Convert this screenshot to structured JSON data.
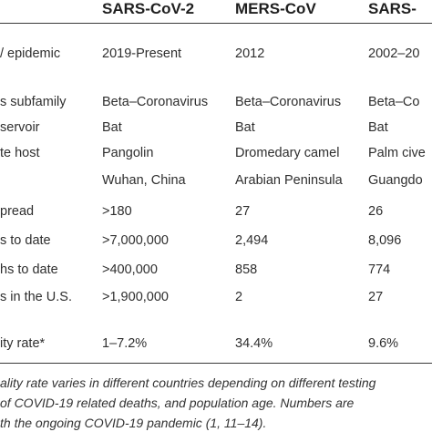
{
  "table": {
    "columns": [
      "SARS-CoV-2",
      "MERS-CoV",
      "SARS-"
    ],
    "rows": [
      {
        "label": "/ epidemic",
        "values": [
          "2019-Present",
          "2012",
          "2002–20"
        ]
      },
      {
        "label": "s subfamily",
        "values": [
          "Beta–Coronavirus",
          "Beta–Coronavirus",
          "Beta–Co"
        ]
      },
      {
        "label": "servoir",
        "values": [
          "Bat",
          "Bat",
          "Bat"
        ]
      },
      {
        "label": "te host",
        "values": [
          "Pangolin",
          "Dromedary camel",
          "Palm cive"
        ]
      },
      {
        "label": "",
        "values": [
          "Wuhan, China",
          "Arabian Peninsula",
          "Guangdo"
        ]
      },
      {
        "label": "pread",
        "values": [
          ">180",
          "27",
          "26"
        ]
      },
      {
        "label": "s to date",
        "values": [
          ">7,000,000",
          "2,494",
          "8,096"
        ]
      },
      {
        "label": "hs to date",
        "values": [
          ">400,000",
          "858",
          "774"
        ]
      },
      {
        "label": "s in the U.S.",
        "values": [
          ">1,900,000",
          "2",
          "27"
        ]
      },
      {
        "label": "ity rate*",
        "values": [
          "1–7.2%",
          "34.4%",
          "9.6%"
        ]
      }
    ]
  },
  "footnote": {
    "lines": [
      "ality rate varies in different countries depending on different testing",
      "of COVID-19 related deaths, and population age. Numbers are",
      "th the ongoing COVID-19 pandemic (1, 11–14)."
    ]
  }
}
